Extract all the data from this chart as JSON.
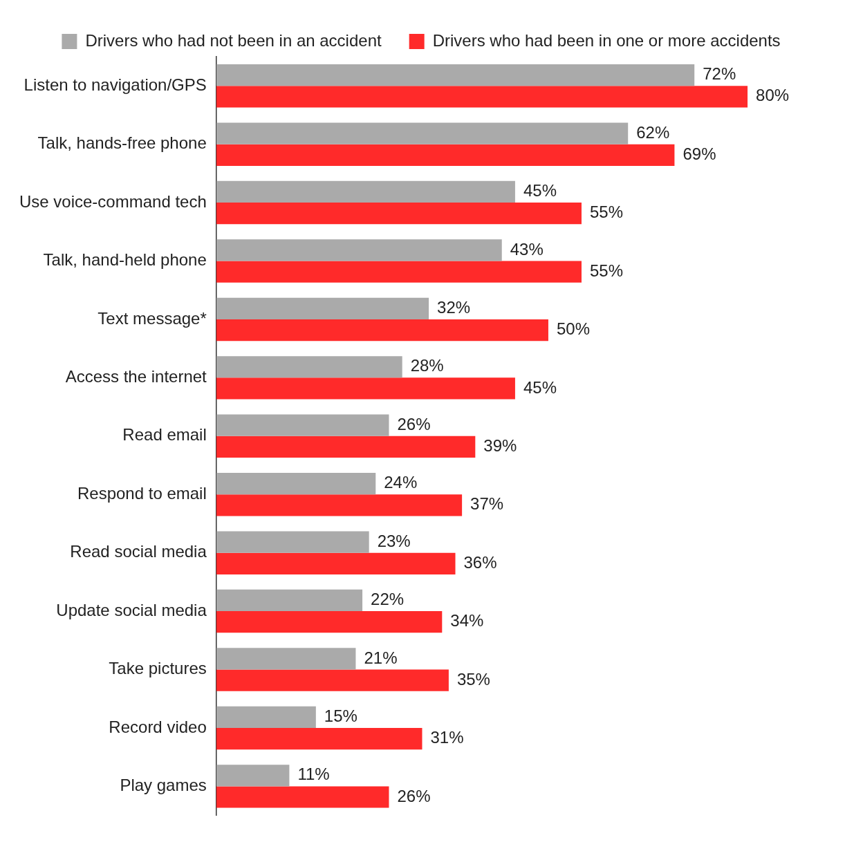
{
  "chart_data": {
    "type": "bar",
    "orientation": "horizontal",
    "legend": "top",
    "categories": [
      "Listen to navigation/GPS",
      "Talk, hands-free phone",
      "Use voice-command tech",
      "Talk, hand-held phone",
      "Text message*",
      "Access the internet",
      "Read email",
      "Respond to email",
      "Read social media",
      "Update social media",
      "Take pictures",
      "Record video",
      "Play games"
    ],
    "series": [
      {
        "name": "Drivers who had not been in an accident",
        "color": "#aaaaaa",
        "values": [
          72,
          62,
          45,
          43,
          32,
          28,
          26,
          24,
          23,
          22,
          21,
          15,
          11
        ],
        "value_labels": [
          "72%",
          "62%",
          "45%",
          "43%",
          "32%",
          "28%",
          "26%",
          "24%",
          "23%",
          "22%",
          "21%",
          "15%",
          "11%"
        ]
      },
      {
        "name": "Drivers who had been in one or more accidents",
        "color": "#ff2a2a",
        "values": [
          80,
          69,
          55,
          55,
          50,
          45,
          39,
          37,
          36,
          34,
          35,
          31,
          26
        ],
        "value_labels": [
          "80%",
          "69%",
          "55%",
          "55%",
          "50%",
          "45%",
          "39%",
          "37%",
          "36%",
          "34%",
          "35%",
          "31%",
          "26%"
        ]
      }
    ]
  }
}
